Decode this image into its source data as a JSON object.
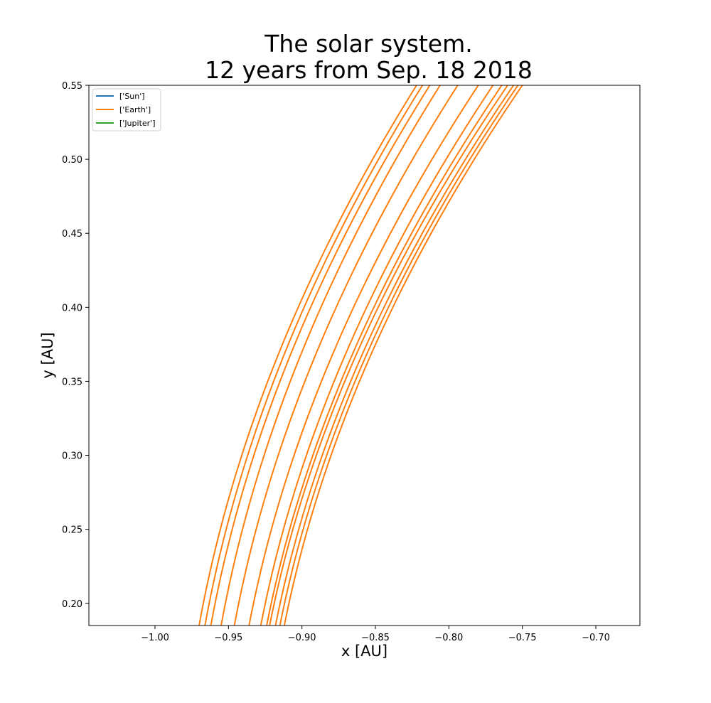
{
  "chart_data": {
    "type": "line",
    "title_lines": [
      "The solar system.",
      "12 years from Sep. 18 2018"
    ],
    "xlabel": "x [AU]",
    "ylabel": "y [AU]",
    "xlim": [
      -1.045,
      -0.67
    ],
    "ylim": [
      0.185,
      0.55
    ],
    "xticks": [
      -1.0,
      -0.95,
      -0.9,
      -0.85,
      -0.8,
      -0.75,
      -0.7
    ],
    "xtick_labels": [
      "−1.00",
      "−0.95",
      "−0.90",
      "−0.85",
      "−0.80",
      "−0.75",
      "−0.70"
    ],
    "yticks": [
      0.2,
      0.25,
      0.3,
      0.35,
      0.4,
      0.45,
      0.5,
      0.55
    ],
    "ytick_labels": [
      "0.20",
      "0.25",
      "0.30",
      "0.35",
      "0.40",
      "0.45",
      "0.50",
      "0.55"
    ],
    "grid": false,
    "legend_position": "top-left",
    "legend": [
      {
        "name": "['Sun']",
        "color": "#1f77b4"
      },
      {
        "name": "['Earth']",
        "color": "#ff7f0e"
      },
      {
        "name": "['Jupiter']",
        "color": "#2ca02c"
      }
    ],
    "series": [
      {
        "name": "['Earth']",
        "color": "#ff7f0e",
        "note": "12 yearly orbit passes through the plotted window",
        "arcs": [
          {
            "x_bottom": -0.97,
            "x_top": -0.822
          },
          {
            "x_bottom": -0.966,
            "x_top": -0.818
          },
          {
            "x_bottom": -0.962,
            "x_top": -0.813
          },
          {
            "x_bottom": -0.955,
            "x_top": -0.806
          },
          {
            "x_bottom": -0.946,
            "x_top": -0.794
          },
          {
            "x_bottom": -0.936,
            "x_top": -0.78
          },
          {
            "x_bottom": -0.928,
            "x_top": -0.77
          },
          {
            "x_bottom": -0.924,
            "x_top": -0.764
          },
          {
            "x_bottom": -0.922,
            "x_top": -0.76
          },
          {
            "x_bottom": -0.918,
            "x_top": -0.756
          },
          {
            "x_bottom": -0.915,
            "x_top": -0.753
          },
          {
            "x_bottom": -0.912,
            "x_top": -0.75
          }
        ]
      },
      {
        "name": "['Sun']",
        "color": "#1f77b4",
        "points": []
      },
      {
        "name": "['Jupiter']",
        "color": "#2ca02c",
        "points": []
      }
    ]
  }
}
